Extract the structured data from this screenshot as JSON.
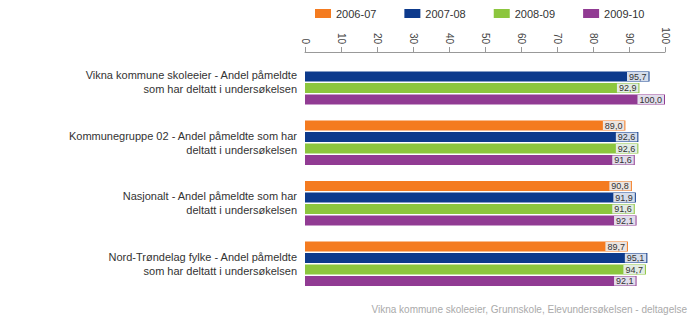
{
  "chart_data": {
    "type": "bar",
    "orientation": "horizontal",
    "categories": [
      "Vikna kommune skoleeier - Andel påmeldte\nsom har deltatt i undersøkelsen",
      "Kommunegruppe 02 - Andel påmeldte som har\ndeltatt i undersøkelsen",
      "Nasjonalt - Andel påmeldte som har\ndeltatt i undersøkelsen",
      "Nord-Trøndelag fylke - Andel påmeldte\nsom har deltatt i undersøkelsen"
    ],
    "series": [
      {
        "name": "2006-07",
        "color": "#f47b20",
        "values": [
          null,
          89.0,
          90.8,
          89.7
        ],
        "value_labels": [
          null,
          "89,0",
          "90,8",
          "89,7"
        ]
      },
      {
        "name": "2007-08",
        "color": "#0d3a8c",
        "values": [
          95.7,
          92.6,
          91.9,
          95.1
        ],
        "value_labels": [
          "95,7",
          "92,6",
          "91,9",
          "95,1"
        ]
      },
      {
        "name": "2008-09",
        "color": "#8cc63e",
        "values": [
          92.9,
          92.6,
          91.6,
          94.7
        ],
        "value_labels": [
          "92,9",
          "92,6",
          "91,6",
          "94,7"
        ]
      },
      {
        "name": "2009-10",
        "color": "#913b93",
        "values": [
          100.0,
          91.6,
          92.1,
          92.1
        ],
        "value_labels": [
          "100,0",
          "91,6",
          "92,1",
          "92,1"
        ]
      }
    ],
    "xlim": [
      0,
      100
    ],
    "xticks": [
      0,
      10,
      20,
      30,
      40,
      50,
      60,
      70,
      80,
      90,
      100
    ],
    "grid": false,
    "legend": "top",
    "data_labels": true,
    "annotation": "Vikna kommune skoleeier, Grunnskole, Elevundersøkelsen - deltagelse"
  }
}
